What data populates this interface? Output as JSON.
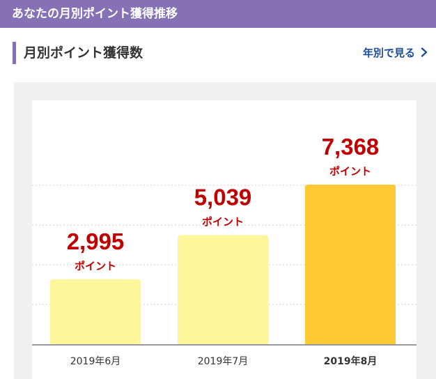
{
  "header": {
    "title": "あなたの月別ポイント獲得推移"
  },
  "section": {
    "title": "月別ポイント獲得数",
    "link_label": "年別で見る",
    "link_icon": "chevron-right-icon"
  },
  "colors": {
    "header_bg": "#8571b4",
    "accent": "#8571b4",
    "link": "#1c4e93",
    "value_text": "#c00000",
    "bar_light": "#fff59a",
    "bar_current": "#ffc933",
    "panel_bg": "#f0f0f0"
  },
  "chart_data": {
    "type": "bar",
    "title": "",
    "xlabel": "",
    "ylabel": "",
    "categories": [
      "2019年6月",
      "2019年7月",
      "2019年8月"
    ],
    "values": [
      2995,
      5039,
      7368
    ],
    "value_labels": [
      "2,995",
      "5,039",
      "7,368"
    ],
    "unit_label": "ポイント",
    "highlight_index": 2,
    "grid": true,
    "axis_labels_shown": false
  }
}
